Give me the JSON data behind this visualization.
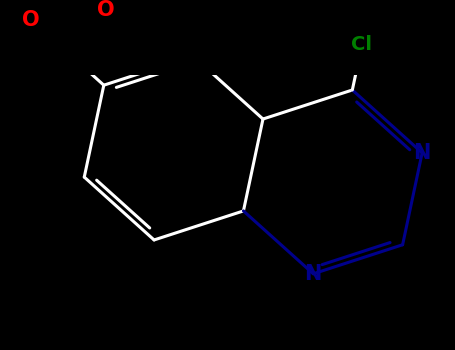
{
  "background_color": "#000000",
  "white": "#ffffff",
  "nitrogen_color": "#00008B",
  "oxygen_color": "#FF0000",
  "chlorine_color": "#008000",
  "bond_width": 2.2,
  "font_size_N": 15,
  "font_size_O": 15,
  "font_size_Cl": 14,
  "figure_width": 4.55,
  "figure_height": 3.5,
  "dpi": 100,
  "xlim": [
    -4.0,
    4.0
  ],
  "ylim": [
    -3.2,
    3.2
  ]
}
